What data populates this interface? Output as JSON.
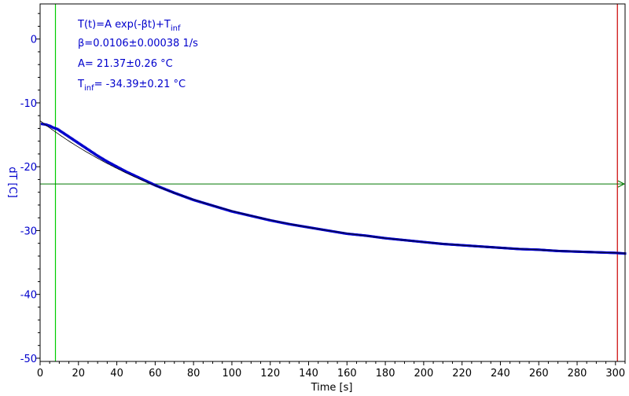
{
  "chart_data": {
    "type": "scatter",
    "xlabel": "Time [s]",
    "ylabel": "dT [C]",
    "xlim": [
      0,
      305
    ],
    "ylim": [
      -50.5,
      5.5
    ],
    "xticks": [
      0,
      20,
      40,
      60,
      80,
      100,
      120,
      140,
      160,
      180,
      200,
      220,
      240,
      260,
      280,
      300
    ],
    "yticks": [
      0,
      -10,
      -20,
      -30,
      -40,
      -50
    ],
    "grid": false,
    "fit": {
      "A": 21.37,
      "beta": 0.0106,
      "Tinf": -34.39
    },
    "series": [
      {
        "color": "#0000cc",
        "x": [
          1,
          3,
          5,
          7,
          9,
          12,
          15,
          20,
          25,
          30,
          35,
          40,
          45,
          50,
          55,
          60,
          70,
          80,
          90,
          100,
          110,
          120,
          130,
          140,
          150,
          160,
          170,
          180,
          190,
          200,
          210,
          220,
          230,
          240,
          250,
          260,
          270,
          280,
          290,
          300,
          305
        ],
        "y": [
          -13.3,
          -13.4,
          -13.6,
          -13.9,
          -14.1,
          -14.7,
          -15.3,
          -16.3,
          -17.3,
          -18.3,
          -19.2,
          -20.0,
          -20.8,
          -21.5,
          -22.2,
          -22.9,
          -24.1,
          -25.2,
          -26.1,
          -27.0,
          -27.7,
          -28.4,
          -29.0,
          -29.5,
          -30.0,
          -30.5,
          -30.8,
          -31.2,
          -31.5,
          -31.8,
          -32.1,
          -32.3,
          -32.5,
          -32.7,
          -32.9,
          -33.0,
          -33.2,
          -33.3,
          -33.4,
          -33.5,
          -33.6
        ]
      }
    ],
    "markers": {
      "left_cursor_x": 8,
      "right_cursor_x": 301,
      "hline_y": -22.7
    },
    "colors": {
      "axis": "#000000",
      "tick_text": "#0000cc",
      "left_cursor": "#00cc00",
      "right_cursor": "#cc0000",
      "hline": "#007700",
      "fit_line": "#000000"
    },
    "annotations": [
      {
        "main": "T(t)=A exp(-βt)+T",
        "sub": "inf",
        "rest": ""
      },
      {
        "main": "β=0.0106±0.00038 1/s",
        "sub": "",
        "rest": ""
      },
      {
        "main": "A= 21.37±0.26 °C",
        "sub": "",
        "rest": ""
      },
      {
        "main": "T",
        "sub": "inf",
        "rest": "= -34.39±0.21 °C"
      }
    ]
  }
}
